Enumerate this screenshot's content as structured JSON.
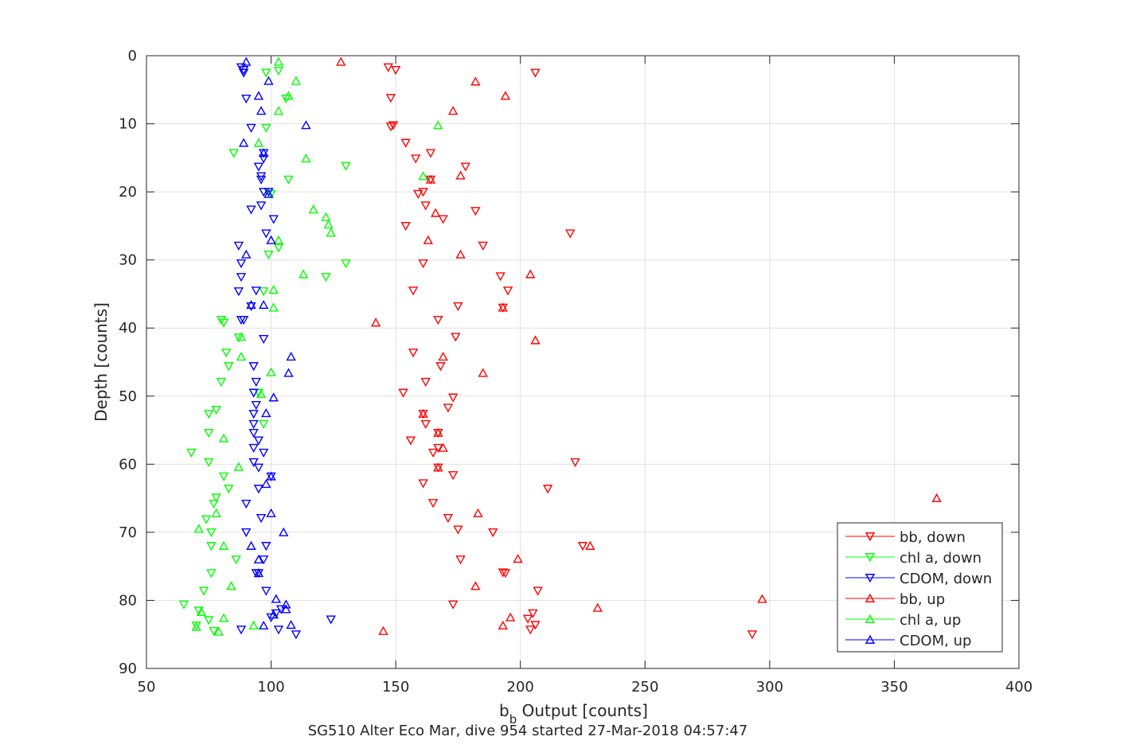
{
  "chart_data": {
    "type": "scatter",
    "title": "",
    "caption": "SG510 Alter Eco Mar, dive 954 started 27-Mar-2018 04:57:47",
    "xlabel_main": "b",
    "xlabel_sub": "b",
    "xlabel_rest": " Output [counts]",
    "ylabel": "Depth [counts]",
    "xlim": [
      50,
      400
    ],
    "ylim": [
      0,
      90
    ],
    "y_reversed": true,
    "grid": true,
    "legend_position": "bottom-right",
    "xticks": [
      "50",
      "100",
      "150",
      "200",
      "250",
      "300",
      "350",
      "400"
    ],
    "yticks": [
      "0",
      "10",
      "20",
      "30",
      "40",
      "50",
      "60",
      "70",
      "80",
      "90"
    ],
    "series": [
      {
        "name": "bb, down",
        "color": "#ff0000",
        "marker": "triangle-down",
        "points": [
          [
            147,
            1.7
          ],
          [
            150,
            2.1
          ],
          [
            206,
            2.5
          ],
          [
            148,
            6.2
          ],
          [
            149,
            10.2
          ],
          [
            148,
            10.4
          ],
          [
            154,
            12.8
          ],
          [
            164,
            14.3
          ],
          [
            158,
            15.1
          ],
          [
            178,
            16.3
          ],
          [
            164,
            18.2
          ],
          [
            161,
            20.0
          ],
          [
            159,
            20.3
          ],
          [
            162,
            22.0
          ],
          [
            182,
            22.8
          ],
          [
            169,
            24.0
          ],
          [
            154,
            25.0
          ],
          [
            220,
            26.1
          ],
          [
            185,
            27.9
          ],
          [
            161,
            30.5
          ],
          [
            192,
            32.4
          ],
          [
            195,
            34.5
          ],
          [
            157,
            34.5
          ],
          [
            175,
            36.8
          ],
          [
            193,
            37.0
          ],
          [
            167,
            38.8
          ],
          [
            174,
            41.3
          ],
          [
            157,
            43.6
          ],
          [
            168,
            45.6
          ],
          [
            162,
            47.9
          ],
          [
            153,
            49.5
          ],
          [
            173,
            50.2
          ],
          [
            171,
            51.7
          ],
          [
            161,
            52.6
          ],
          [
            162,
            54.1
          ],
          [
            167,
            55.4
          ],
          [
            156,
            56.5
          ],
          [
            167,
            57.6
          ],
          [
            165,
            58.3
          ],
          [
            222,
            59.7
          ],
          [
            167,
            60.5
          ],
          [
            173,
            61.6
          ],
          [
            161,
            62.8
          ],
          [
            211,
            63.6
          ],
          [
            165,
            65.7
          ],
          [
            171,
            67.9
          ],
          [
            189,
            70.0
          ],
          [
            175,
            69.6
          ],
          [
            225,
            72.0
          ],
          [
            176,
            74.0
          ],
          [
            193,
            75.9
          ],
          [
            194,
            76.0
          ],
          [
            207,
            78.6
          ],
          [
            173,
            80.6
          ],
          [
            205,
            81.9
          ],
          [
            203,
            82.7
          ],
          [
            206,
            83.6
          ],
          [
            204,
            84.3
          ],
          [
            293,
            85.0
          ]
        ]
      },
      {
        "name": "chl a, down",
        "color": "#00ff00",
        "marker": "triangle-down",
        "points": [
          [
            98,
            2.5
          ],
          [
            103,
            2.2
          ],
          [
            106,
            6.3
          ],
          [
            98,
            10.6
          ],
          [
            85,
            14.3
          ],
          [
            130,
            16.2
          ],
          [
            107,
            18.2
          ],
          [
            100,
            20.3
          ],
          [
            103,
            28.2
          ],
          [
            99,
            29.2
          ],
          [
            130,
            30.5
          ],
          [
            122,
            32.5
          ],
          [
            97,
            34.6
          ],
          [
            80,
            38.8
          ],
          [
            81,
            39.2
          ],
          [
            87,
            41.4
          ],
          [
            82,
            43.6
          ],
          [
            83,
            45.6
          ],
          [
            80,
            47.9
          ],
          [
            95,
            49.5
          ],
          [
            78,
            52.0
          ],
          [
            75,
            52.6
          ],
          [
            97,
            54.1
          ],
          [
            75,
            55.4
          ],
          [
            68,
            58.3
          ],
          [
            75,
            59.7
          ],
          [
            81,
            61.8
          ],
          [
            83,
            63.6
          ],
          [
            77,
            65.8
          ],
          [
            78,
            64.9
          ],
          [
            74,
            68.1
          ],
          [
            76,
            70.0
          ],
          [
            76,
            72.0
          ],
          [
            86,
            74.0
          ],
          [
            76,
            76.0
          ],
          [
            73,
            78.6
          ],
          [
            65,
            80.6
          ],
          [
            71,
            81.5
          ],
          [
            75,
            82.9
          ],
          [
            70,
            83.7
          ],
          [
            77,
            84.5
          ]
        ]
      },
      {
        "name": "CDOM, down",
        "color": "#0000ff",
        "marker": "triangle-down",
        "points": [
          [
            88,
            1.7
          ],
          [
            89,
            2.1
          ],
          [
            89,
            2.5
          ],
          [
            90,
            6.3
          ],
          [
            92,
            10.6
          ],
          [
            97,
            14.3
          ],
          [
            97,
            15.1
          ],
          [
            95,
            16.3
          ],
          [
            96,
            17.7
          ],
          [
            96,
            18.2
          ],
          [
            97,
            20.0
          ],
          [
            99,
            20.0
          ],
          [
            92,
            22.6
          ],
          [
            96,
            22.0
          ],
          [
            101,
            24.0
          ],
          [
            98,
            26.1
          ],
          [
            87,
            27.9
          ],
          [
            88,
            30.5
          ],
          [
            88,
            32.5
          ],
          [
            87,
            34.6
          ],
          [
            94,
            34.5
          ],
          [
            92,
            36.8
          ],
          [
            88,
            38.8
          ],
          [
            89,
            38.8
          ],
          [
            97,
            41.6
          ],
          [
            93,
            45.6
          ],
          [
            94,
            47.9
          ],
          [
            93,
            49.5
          ],
          [
            94,
            51.3
          ],
          [
            93,
            52.6
          ],
          [
            93,
            54.1
          ],
          [
            93,
            55.4
          ],
          [
            95,
            56.5
          ],
          [
            93,
            57.6
          ],
          [
            97,
            58.3
          ],
          [
            93,
            59.7
          ],
          [
            95,
            60.5
          ],
          [
            100,
            61.8
          ],
          [
            95,
            63.6
          ],
          [
            90,
            65.8
          ],
          [
            96,
            67.9
          ],
          [
            90,
            70.0
          ],
          [
            98,
            72.0
          ],
          [
            97,
            74.0
          ],
          [
            95,
            76.0
          ],
          [
            94,
            76.0
          ],
          [
            98,
            78.6
          ],
          [
            104,
            81.3
          ],
          [
            124,
            82.8
          ],
          [
            102,
            81.9
          ],
          [
            100,
            82.5
          ],
          [
            88,
            84.3
          ],
          [
            103,
            84.3
          ],
          [
            110,
            85.0
          ]
        ]
      },
      {
        "name": "bb, up",
        "color": "#ff0000",
        "marker": "triangle-up",
        "points": [
          [
            128,
            0.9
          ],
          [
            182,
            3.8
          ],
          [
            194,
            5.9
          ],
          [
            173,
            8.1
          ],
          [
            164,
            18.2
          ],
          [
            176,
            17.6
          ],
          [
            166,
            23.1
          ],
          [
            163,
            27.1
          ],
          [
            176,
            29.2
          ],
          [
            204,
            32.1
          ],
          [
            193,
            37.0
          ],
          [
            142,
            39.2
          ],
          [
            206,
            41.8
          ],
          [
            169,
            44.2
          ],
          [
            185,
            46.6
          ],
          [
            161,
            52.6
          ],
          [
            167,
            55.4
          ],
          [
            169,
            57.6
          ],
          [
            167,
            60.5
          ],
          [
            367,
            65.0
          ],
          [
            183,
            67.2
          ],
          [
            228,
            72.0
          ],
          [
            199,
            73.9
          ],
          [
            182,
            77.9
          ],
          [
            297,
            79.8
          ],
          [
            231,
            81.1
          ],
          [
            196,
            82.5
          ],
          [
            193,
            83.7
          ],
          [
            145,
            84.5
          ]
        ]
      },
      {
        "name": "chl a, up",
        "color": "#00ff00",
        "marker": "triangle-up",
        "points": [
          [
            103,
            0.9
          ],
          [
            110,
            3.7
          ],
          [
            107,
            5.9
          ],
          [
            103,
            8.1
          ],
          [
            167,
            10.2
          ],
          [
            95,
            12.8
          ],
          [
            114,
            15.1
          ],
          [
            161,
            17.7
          ],
          [
            99,
            20.3
          ],
          [
            117,
            22.6
          ],
          [
            122,
            23.7
          ],
          [
            123,
            24.8
          ],
          [
            124,
            26.0
          ],
          [
            103,
            27.1
          ],
          [
            113,
            32.1
          ],
          [
            101,
            34.4
          ],
          [
            101,
            37.0
          ],
          [
            88,
            41.3
          ],
          [
            88,
            44.2
          ],
          [
            100,
            46.5
          ],
          [
            96,
            49.7
          ],
          [
            81,
            56.2
          ],
          [
            87,
            60.4
          ],
          [
            78,
            67.2
          ],
          [
            71,
            69.5
          ],
          [
            81,
            72.0
          ],
          [
            84,
            77.9
          ],
          [
            72,
            81.7
          ],
          [
            81,
            82.6
          ],
          [
            93,
            83.7
          ],
          [
            70,
            83.9
          ],
          [
            79,
            84.6
          ]
        ]
      },
      {
        "name": "CDOM, up",
        "color": "#0000ff",
        "marker": "triangle-up",
        "points": [
          [
            90,
            0.9
          ],
          [
            99,
            3.7
          ],
          [
            95,
            5.9
          ],
          [
            96,
            8.1
          ],
          [
            114,
            10.2
          ],
          [
            89,
            12.8
          ],
          [
            97,
            14.3
          ],
          [
            99,
            20.3
          ],
          [
            100,
            27.1
          ],
          [
            90,
            29.2
          ],
          [
            92,
            36.6
          ],
          [
            97,
            36.6
          ],
          [
            108,
            44.2
          ],
          [
            107,
            46.6
          ],
          [
            101,
            50.2
          ],
          [
            98,
            52.5
          ],
          [
            100,
            61.8
          ],
          [
            98,
            62.9
          ],
          [
            100,
            67.2
          ],
          [
            105,
            70.0
          ],
          [
            92,
            72.0
          ],
          [
            95,
            74.0
          ],
          [
            95,
            76.0
          ],
          [
            102,
            79.8
          ],
          [
            106,
            80.6
          ],
          [
            106,
            81.3
          ],
          [
            101,
            82.1
          ],
          [
            108,
            83.6
          ],
          [
            97,
            83.7
          ]
        ]
      }
    ]
  }
}
